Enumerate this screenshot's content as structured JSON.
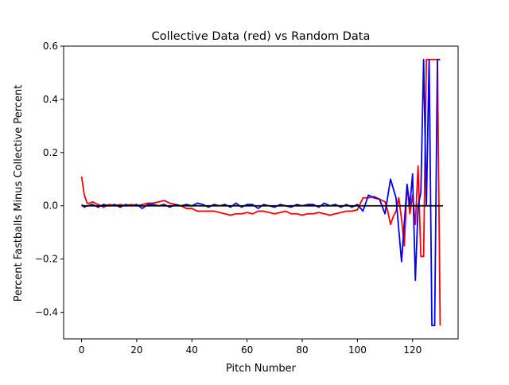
{
  "chart_data": {
    "type": "line",
    "title": "Collective Data (red) vs Random Data",
    "xlabel": "Pitch Number",
    "ylabel": "Percent Fastballs Minus Collective Percent",
    "xlim": [
      -6.5,
      136.5
    ],
    "ylim": [
      -0.5,
      0.6
    ],
    "x_ticks": [
      0,
      20,
      40,
      60,
      80,
      100,
      120
    ],
    "x_tick_labels": [
      "0",
      "20",
      "40",
      "60",
      "80",
      "100",
      "120"
    ],
    "y_ticks": [
      -0.4,
      -0.2,
      0.0,
      0.2,
      0.4,
      0.6
    ],
    "y_tick_labels": [
      "−0.4",
      "−0.2",
      "0.0",
      "0.2",
      "0.4",
      "0.6"
    ],
    "grid": false,
    "legend": "none",
    "series": [
      {
        "color": "#ff0000",
        "x": [
          0,
          1,
          2,
          3,
          4,
          5,
          6,
          7,
          8,
          9,
          10,
          12,
          14,
          16,
          18,
          20,
          22,
          24,
          26,
          28,
          30,
          32,
          34,
          36,
          38,
          40,
          42,
          44,
          46,
          48,
          50,
          52,
          54,
          56,
          58,
          60,
          62,
          64,
          66,
          68,
          70,
          72,
          74,
          76,
          78,
          80,
          82,
          84,
          86,
          88,
          90,
          92,
          94,
          96,
          98,
          100,
          102,
          104,
          106,
          108,
          110,
          111,
          112,
          113,
          114,
          115,
          116,
          117,
          118,
          119,
          120,
          121,
          122,
          123,
          124,
          125,
          126,
          127,
          128,
          129,
          130
        ],
        "y": [
          0.11,
          0.04,
          0.01,
          0.01,
          0.015,
          0.01,
          0.005,
          0.0,
          -0.005,
          0.0,
          0.005,
          0.0,
          0.005,
          0.0,
          0.005,
          0.0,
          0.005,
          0.01,
          0.01,
          0.015,
          0.02,
          0.01,
          0.005,
          0.0,
          -0.01,
          -0.01,
          -0.02,
          -0.02,
          -0.02,
          -0.02,
          -0.025,
          -0.03,
          -0.035,
          -0.03,
          -0.03,
          -0.025,
          -0.03,
          -0.02,
          -0.02,
          -0.025,
          -0.03,
          -0.025,
          -0.02,
          -0.03,
          -0.03,
          -0.035,
          -0.03,
          -0.03,
          -0.025,
          -0.03,
          -0.035,
          -0.03,
          -0.025,
          -0.02,
          -0.02,
          -0.015,
          0.03,
          0.03,
          0.035,
          0.025,
          0.015,
          -0.02,
          -0.07,
          -0.04,
          -0.02,
          0.03,
          -0.05,
          -0.15,
          0.08,
          -0.03,
          0.04,
          -0.07,
          0.15,
          -0.19,
          -0.19,
          0.55,
          0.55,
          0.55,
          0.55,
          0.55,
          -0.45
        ]
      },
      {
        "color": "#0000ff",
        "x": [
          0,
          1,
          2,
          4,
          6,
          8,
          10,
          12,
          14,
          16,
          18,
          20,
          22,
          24,
          26,
          28,
          30,
          32,
          34,
          36,
          38,
          40,
          42,
          44,
          46,
          48,
          50,
          52,
          54,
          56,
          58,
          60,
          62,
          64,
          66,
          68,
          70,
          72,
          74,
          76,
          78,
          80,
          82,
          84,
          86,
          88,
          90,
          92,
          94,
          96,
          98,
          100,
          102,
          104,
          106,
          108,
          110,
          112,
          114,
          116,
          118,
          119,
          120,
          121,
          122,
          123,
          124,
          125,
          126,
          127,
          128,
          129,
          130
        ],
        "y": [
          0.005,
          -0.005,
          0.0,
          0.005,
          -0.005,
          0.005,
          0.0,
          0.005,
          -0.005,
          0.005,
          0.0,
          0.005,
          -0.01,
          0.005,
          0.005,
          0.0,
          0.005,
          -0.005,
          0.005,
          0.0,
          0.005,
          0.0,
          0.01,
          0.005,
          -0.005,
          0.005,
          0.0,
          0.005,
          -0.005,
          0.01,
          -0.005,
          0.005,
          0.005,
          -0.01,
          0.005,
          0.0,
          -0.005,
          0.005,
          0.0,
          -0.005,
          0.005,
          0.0,
          0.005,
          0.005,
          -0.005,
          0.01,
          0.0,
          0.005,
          -0.005,
          0.005,
          -0.005,
          0.005,
          -0.02,
          0.04,
          0.03,
          0.025,
          -0.03,
          0.1,
          0.03,
          -0.21,
          0.08,
          0.0,
          0.12,
          -0.28,
          0.0,
          0.05,
          0.55,
          0.0,
          0.55,
          -0.45,
          -0.45,
          0.55,
          0.55
        ]
      },
      {
        "color": "#000000",
        "x": [
          0,
          131
        ],
        "y": [
          0,
          0
        ]
      }
    ]
  }
}
